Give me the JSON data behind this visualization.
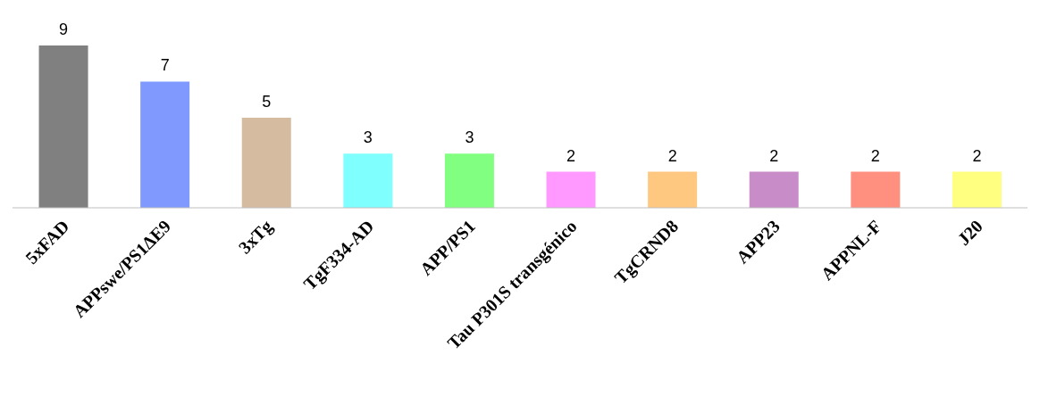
{
  "chart_data": {
    "type": "bar",
    "categories": [
      "5xFAD",
      "APPswe/PS1ΔE9",
      "3xTg",
      "TgF334-AD",
      "APP/PS1",
      "Tau P301S transgénico",
      "TgCRND8",
      "APP23",
      "APPNL-F",
      "J20"
    ],
    "values": [
      9,
      7,
      5,
      3,
      3,
      2,
      2,
      2,
      2,
      2
    ],
    "colors": [
      "#808080",
      "#8099ff",
      "#d5bca0",
      "#80ffff",
      "#80ff80",
      "#ff99ff",
      "#ffc880",
      "#c88cc8",
      "#ff9080",
      "#ffff80"
    ],
    "data_labels": true,
    "grid": false,
    "tick_labels": "x"
  }
}
